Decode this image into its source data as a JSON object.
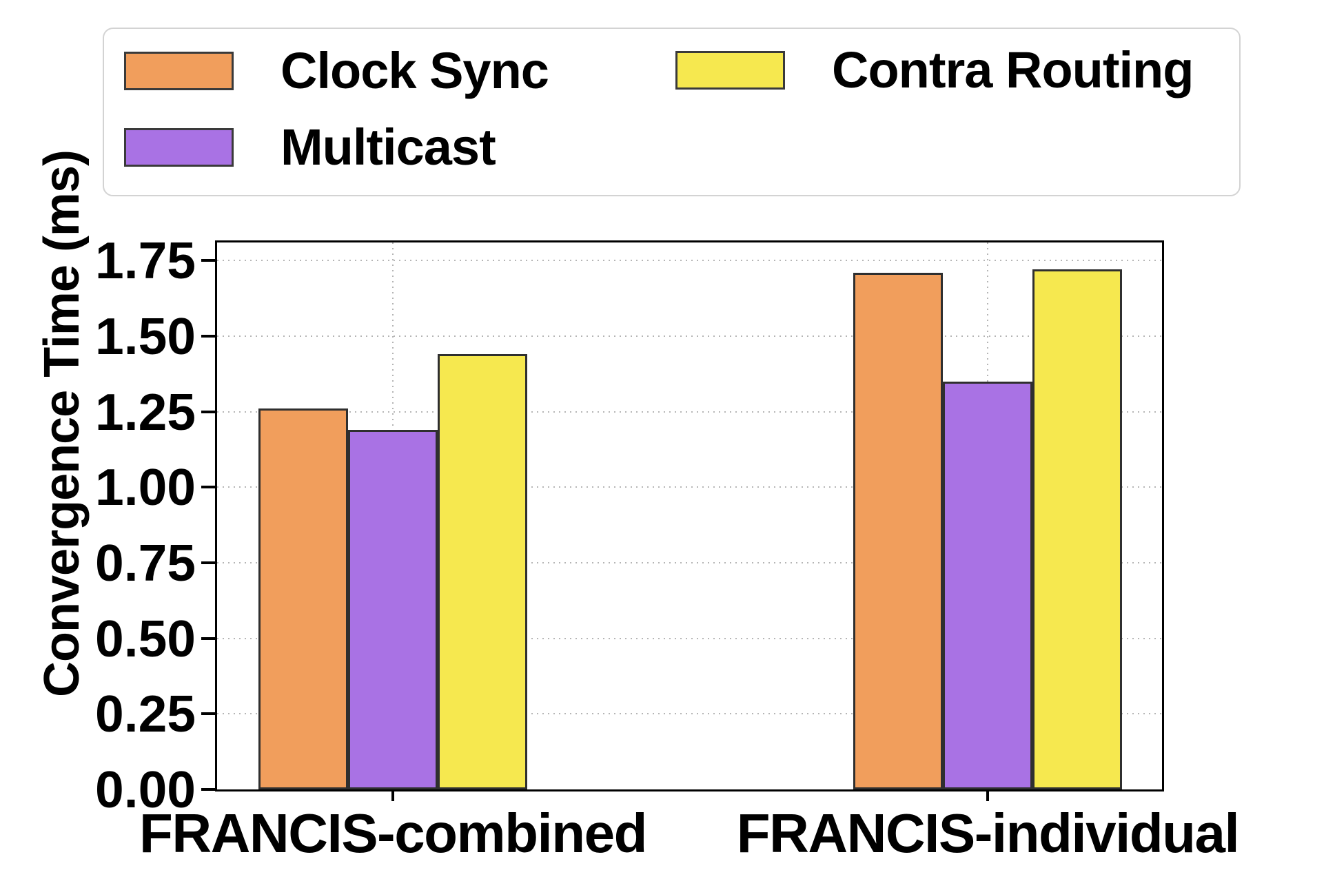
{
  "chart_data": {
    "type": "bar",
    "title": "",
    "xlabel": "",
    "ylabel": "Convergence Time (ms)",
    "categories": [
      "FRANCIS-combined",
      "FRANCIS-individual"
    ],
    "series": [
      {
        "name": "Clock Sync",
        "color": "#F19E5C",
        "values": [
          1.26,
          1.71
        ]
      },
      {
        "name": "Multicast",
        "color": "#A972E4",
        "values": [
          1.19,
          1.35
        ]
      },
      {
        "name": "Contra Routing",
        "color": "#F6E84F",
        "values": [
          1.44,
          1.72
        ]
      }
    ],
    "bar_edge_color": "#2f2f2f",
    "ylim": [
      0,
      1.81
    ],
    "yticks": [
      0.0,
      0.25,
      0.5,
      0.75,
      1.0,
      1.25,
      1.5,
      1.75
    ],
    "ytick_label_format": "2-decimals",
    "grid": {
      "horizontal": true,
      "vertical": true,
      "style": "dotted",
      "color": "#b5b5b5"
    },
    "legend": {
      "position": "upper-left-outside",
      "columns": 2,
      "border_color": "#d3d3d3"
    }
  }
}
